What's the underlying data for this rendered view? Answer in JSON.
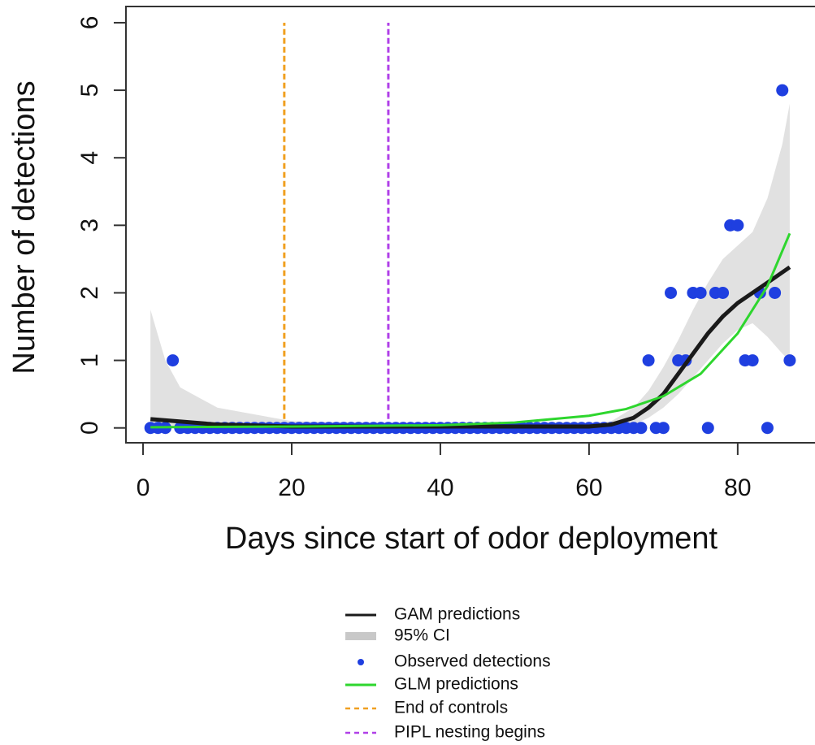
{
  "chart_data": {
    "type": "scatter",
    "xlabel": "Days since start of odor deployment",
    "ylabel": "Number of detections",
    "xlim": [
      -2.3,
      90.4
    ],
    "ylim": [
      -0.22,
      6.24
    ],
    "xticks": [
      0,
      20,
      40,
      60,
      80
    ],
    "yticks": [
      0,
      1,
      2,
      3,
      4,
      5,
      6
    ],
    "series": [
      {
        "name": "GAM predictions",
        "style": "line",
        "color": "#1a1a1a",
        "x": [
          1,
          10,
          20,
          40,
          60,
          63,
          66,
          68,
          70,
          72,
          74,
          76,
          78,
          80,
          82,
          84,
          87
        ],
        "values": [
          0.13,
          0.05,
          0.02,
          0.02,
          0.02,
          0.05,
          0.15,
          0.3,
          0.5,
          0.8,
          1.1,
          1.4,
          1.65,
          1.85,
          2.0,
          2.15,
          2.38
        ]
      },
      {
        "name": "95% CI",
        "style": "band",
        "color": "#c8c8c8",
        "x": [
          1,
          3,
          5,
          10,
          20,
          40,
          60,
          63,
          66,
          68,
          70,
          72,
          74,
          76,
          78,
          80,
          82,
          84,
          86,
          87
        ],
        "upper": [
          1.75,
          1.0,
          0.6,
          0.3,
          0.1,
          0.05,
          0.05,
          0.1,
          0.3,
          0.55,
          0.9,
          1.3,
          1.75,
          2.15,
          2.5,
          2.7,
          2.9,
          3.4,
          4.2,
          4.8
        ],
        "lower": [
          0,
          0,
          0,
          0,
          0,
          0,
          0,
          0.02,
          0.05,
          0.15,
          0.3,
          0.5,
          0.75,
          1.0,
          1.25,
          1.45,
          1.55,
          1.35,
          1.1,
          1.0
        ]
      },
      {
        "name": "Observed detections",
        "style": "points",
        "color": "#1f3fe0",
        "x": [
          1,
          2,
          3,
          4,
          5,
          6,
          7,
          8,
          9,
          10,
          11,
          12,
          13,
          14,
          15,
          16,
          17,
          18,
          19,
          20,
          21,
          22,
          23,
          24,
          25,
          26,
          27,
          28,
          29,
          30,
          31,
          32,
          33,
          34,
          35,
          36,
          37,
          38,
          39,
          40,
          41,
          42,
          43,
          44,
          45,
          46,
          47,
          48,
          49,
          50,
          51,
          52,
          53,
          54,
          55,
          56,
          57,
          58,
          59,
          60,
          61,
          62,
          63,
          64,
          65,
          66,
          67,
          68,
          69,
          70,
          71,
          72,
          73,
          74,
          75,
          76,
          77,
          78,
          79,
          80,
          81,
          82,
          83,
          84,
          85,
          86,
          87
        ],
        "values": [
          0,
          0,
          0,
          1,
          0,
          0,
          0,
          0,
          0,
          0,
          0,
          0,
          0,
          0,
          0,
          0,
          0,
          0,
          0,
          0,
          0,
          0,
          0,
          0,
          0,
          0,
          0,
          0,
          0,
          0,
          0,
          0,
          0,
          0,
          0,
          0,
          0,
          0,
          0,
          0,
          0,
          0,
          0,
          0,
          0,
          0,
          0,
          0,
          0,
          0,
          0,
          0,
          0,
          0,
          0,
          0,
          0,
          0,
          0,
          0,
          0,
          0,
          0,
          0,
          0,
          0,
          0,
          1,
          0,
          0,
          2,
          1,
          1,
          2,
          2,
          0,
          2,
          2,
          3,
          3,
          1,
          1,
          2,
          0,
          2,
          5,
          1
        ]
      },
      {
        "name": "GLM predictions",
        "style": "line",
        "color": "#2ed62e",
        "x": [
          1,
          20,
          40,
          50,
          60,
          65,
          70,
          75,
          80,
          84,
          87
        ],
        "values": [
          0.01,
          0.02,
          0.04,
          0.08,
          0.18,
          0.28,
          0.47,
          0.8,
          1.4,
          2.1,
          2.88
        ]
      },
      {
        "name": "End of controls",
        "style": "vline",
        "color": "#f0a020",
        "x": [
          19
        ]
      },
      {
        "name": "PIPL nesting begins",
        "style": "vline",
        "color": "#b040e8",
        "x": [
          33
        ]
      }
    ]
  }
}
